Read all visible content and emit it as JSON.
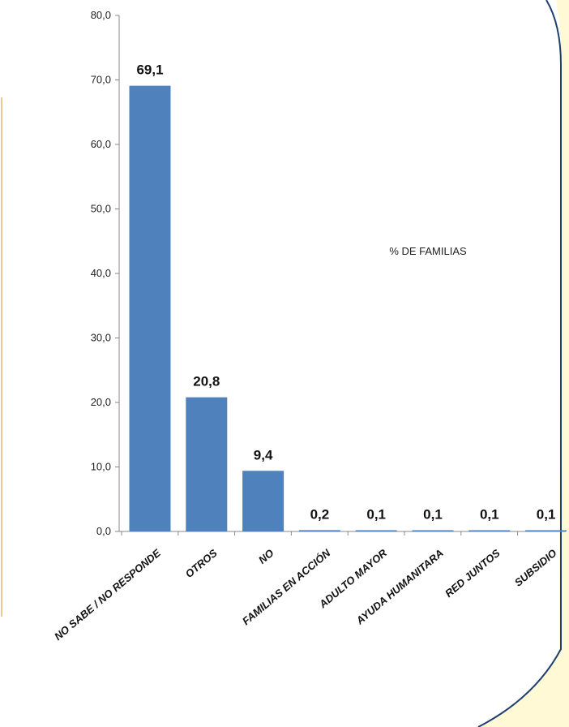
{
  "chart_data": {
    "type": "bar",
    "categories": [
      "NO SABE / NO RESPONDE",
      "OTROS",
      "NO",
      "FAMILIAS EN ACCIÓN",
      "ADULTO MAYOR",
      "AYUDA HUMANITARA",
      "RED JUNTOS",
      "SUBSIDIO"
    ],
    "values": [
      69.1,
      20.8,
      9.4,
      0.2,
      0.1,
      0.1,
      0.1,
      0.1
    ],
    "data_labels": [
      "69,1",
      "20,8",
      "9,4",
      "0,2",
      "0,1",
      "0,1",
      "0,1",
      "0,1"
    ],
    "series": [
      {
        "name": "% DE FAMILIAS",
        "values": [
          69.1,
          20.8,
          9.4,
          0.2,
          0.1,
          0.1,
          0.1,
          0.1
        ]
      }
    ],
    "ylim": [
      0,
      80
    ],
    "y_ticks": [
      0,
      10,
      20,
      30,
      40,
      50,
      60,
      70,
      80
    ],
    "y_tick_labels": [
      "0,0",
      "10,0",
      "20,0",
      "30,0",
      "40,0",
      "50,0",
      "60,0",
      "70,0",
      "80,0"
    ],
    "grid": false,
    "legend_position": "right",
    "colors": {
      "bar": "#4f81bd",
      "frame": "#1f3f73",
      "cream": "#fff9d6",
      "left_border": "#f2c78a"
    }
  }
}
